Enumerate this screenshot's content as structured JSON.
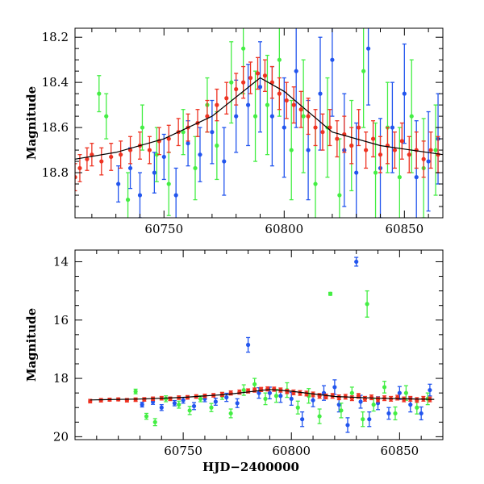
{
  "chart_data": [
    {
      "type": "scatter",
      "title": "",
      "xlabel": "",
      "ylabel": "Magnitude",
      "xlim": [
        60713,
        60866
      ],
      "ylim": [
        19.0,
        18.16
      ],
      "y_inverted": true,
      "x_ticks": [
        60750,
        60800,
        60850
      ],
      "y_ticks": [
        18.2,
        18.4,
        18.6,
        18.8
      ],
      "x_tick_labels": [
        "60750",
        "60800",
        "60850"
      ],
      "y_tick_labels": [
        "18.2",
        "18.4",
        "18.6",
        "18.8"
      ],
      "grid": false,
      "model_curve": {
        "color": "#000000",
        "x": [
          60713,
          60730,
          60750,
          60770,
          60790,
          60800,
          60820,
          60840,
          60866
        ],
        "y": [
          18.74,
          18.71,
          18.65,
          18.55,
          18.38,
          18.44,
          18.62,
          18.68,
          18.72
        ]
      },
      "series": [
        {
          "color": "#2255ee",
          "x": [
            60731,
            60736,
            60740,
            60746,
            60750,
            60755,
            60760,
            60765,
            60770,
            60775,
            60780,
            60785,
            60790,
            60795,
            60800,
            60805,
            60810,
            60815,
            60820,
            60825,
            60830,
            60835,
            60840,
            60845,
            60850,
            60855,
            60860,
            60864
          ],
          "y": [
            18.85,
            18.78,
            18.9,
            18.8,
            18.73,
            18.9,
            18.67,
            18.72,
            18.62,
            18.75,
            18.55,
            18.5,
            18.42,
            18.55,
            18.6,
            18.35,
            18.7,
            18.45,
            18.3,
            18.7,
            18.8,
            18.25,
            18.78,
            18.6,
            18.45,
            18.82,
            18.75,
            18.65
          ],
          "err": [
            0.08,
            0.09,
            0.1,
            0.09,
            0.1,
            0.12,
            0.1,
            0.12,
            0.14,
            0.15,
            0.16,
            0.18,
            0.2,
            0.22,
            0.22,
            0.25,
            0.22,
            0.25,
            0.25,
            0.25,
            0.22,
            0.25,
            0.22,
            0.2,
            0.22,
            0.25,
            0.22,
            0.2
          ]
        },
        {
          "color": "#44ee44",
          "x": [
            60723,
            60726,
            60735,
            60741,
            60747,
            60752,
            60758,
            60763,
            60768,
            60772,
            60778,
            60783,
            60788,
            60793,
            60798,
            60803,
            60808,
            60813,
            60818,
            60823,
            60828,
            60833,
            60838,
            60843,
            60848,
            60853,
            60858,
            60863
          ],
          "y": [
            18.45,
            18.55,
            18.92,
            18.6,
            18.72,
            18.85,
            18.62,
            18.78,
            18.5,
            18.68,
            18.4,
            18.25,
            18.55,
            18.5,
            18.3,
            18.7,
            18.55,
            18.85,
            18.6,
            18.9,
            18.68,
            18.35,
            18.8,
            18.6,
            18.82,
            18.55,
            18.78,
            18.7
          ],
          "err": [
            0.08,
            0.1,
            0.12,
            0.1,
            0.12,
            0.14,
            0.1,
            0.14,
            0.12,
            0.15,
            0.18,
            0.2,
            0.2,
            0.22,
            0.25,
            0.22,
            0.25,
            0.25,
            0.22,
            0.25,
            0.2,
            0.25,
            0.22,
            0.2,
            0.22,
            0.25,
            0.22,
            0.2
          ]
        },
        {
          "color": "#ee3322",
          "x": [
            60713,
            60715,
            60718,
            60720,
            60724,
            60728,
            60732,
            60736,
            60740,
            60744,
            60748,
            60752,
            60756,
            60760,
            60764,
            60768,
            60772,
            60776,
            60780,
            60783,
            60786,
            60789,
            60792,
            60795,
            60798,
            60801,
            60804,
            60807,
            60810,
            60813,
            60816,
            60819,
            60822,
            60825,
            60828,
            60831,
            60834,
            60837,
            60840,
            60843,
            60846,
            60849,
            60852,
            60855,
            60858,
            60861,
            60864
          ],
          "y": [
            18.82,
            18.78,
            18.74,
            18.72,
            18.75,
            18.73,
            18.72,
            18.7,
            18.68,
            18.7,
            18.66,
            18.65,
            18.62,
            18.6,
            18.58,
            18.55,
            18.5,
            18.47,
            18.43,
            18.4,
            18.38,
            18.36,
            18.37,
            18.4,
            18.45,
            18.48,
            18.5,
            18.52,
            18.55,
            18.6,
            18.62,
            18.6,
            18.65,
            18.63,
            18.68,
            18.6,
            18.7,
            18.65,
            18.72,
            18.68,
            18.7,
            18.66,
            18.72,
            18.7,
            18.74,
            18.7,
            18.72
          ],
          "err": [
            0.06,
            0.06,
            0.05,
            0.05,
            0.06,
            0.06,
            0.06,
            0.06,
            0.06,
            0.06,
            0.06,
            0.06,
            0.06,
            0.06,
            0.06,
            0.07,
            0.07,
            0.07,
            0.07,
            0.07,
            0.07,
            0.07,
            0.07,
            0.07,
            0.07,
            0.08,
            0.08,
            0.08,
            0.08,
            0.08,
            0.08,
            0.08,
            0.08,
            0.08,
            0.08,
            0.08,
            0.08,
            0.08,
            0.08,
            0.08,
            0.08,
            0.08,
            0.08,
            0.08,
            0.08,
            0.08,
            0.08
          ]
        }
      ]
    },
    {
      "type": "scatter",
      "title": "",
      "xlabel": "HJD−2400000",
      "ylabel": "Magnitude",
      "xlim": [
        60700,
        60870
      ],
      "ylim": [
        20.1,
        13.6
      ],
      "y_inverted": true,
      "x_ticks": [
        60750,
        60800,
        60850
      ],
      "y_ticks": [
        14,
        16,
        18,
        20
      ],
      "x_tick_labels": [
        "60750",
        "60800",
        "60850"
      ],
      "y_tick_labels": [
        "14",
        "16",
        "18",
        "20"
      ],
      "grid": false,
      "model_curve": {
        "color": "#000000",
        "x": [
          60707,
          60730,
          60750,
          60770,
          60790,
          60800,
          60820,
          60840,
          60866
        ],
        "y": [
          18.74,
          18.71,
          18.65,
          18.55,
          18.38,
          18.44,
          18.62,
          18.68,
          18.72
        ]
      },
      "series": [
        {
          "color": "#2255ee",
          "x": [
            60731,
            60736,
            60740,
            60746,
            60750,
            60755,
            60760,
            60765,
            60770,
            60775,
            60780,
            60785,
            60790,
            60795,
            60800,
            60805,
            60810,
            60815,
            60820,
            60822,
            60826,
            60830,
            60832,
            60836,
            60840,
            60845,
            60850,
            60855,
            60860,
            60864
          ],
          "y": [
            18.9,
            18.8,
            19.0,
            18.85,
            18.75,
            18.95,
            18.7,
            18.8,
            18.65,
            18.85,
            16.85,
            18.5,
            18.5,
            18.6,
            18.7,
            19.4,
            18.75,
            18.5,
            18.3,
            18.9,
            19.6,
            14.0,
            18.8,
            19.4,
            18.85,
            19.2,
            18.5,
            18.9,
            19.2,
            18.4
          ],
          "err": [
            0.08,
            0.09,
            0.1,
            0.09,
            0.1,
            0.12,
            0.1,
            0.12,
            0.14,
            0.15,
            0.25,
            0.18,
            0.2,
            0.22,
            0.22,
            0.25,
            0.22,
            0.25,
            0.25,
            0.25,
            0.25,
            0.15,
            0.22,
            0.25,
            0.22,
            0.2,
            0.22,
            0.25,
            0.22,
            0.2
          ]
        },
        {
          "color": "#44ee44",
          "x": [
            60728,
            60733,
            60737,
            60742,
            60748,
            60753,
            60758,
            60763,
            60768,
            60772,
            60778,
            60783,
            60788,
            60793,
            60798,
            60803,
            60808,
            60813,
            60818,
            60823,
            60828,
            60833,
            60835,
            60838,
            60843,
            60848,
            60853,
            60858,
            60863
          ],
          "y": [
            18.45,
            19.3,
            19.5,
            18.7,
            18.9,
            19.1,
            18.7,
            19.0,
            18.6,
            19.2,
            18.4,
            18.2,
            18.7,
            18.6,
            18.4,
            19.0,
            18.6,
            19.3,
            15.1,
            19.1,
            18.5,
            19.4,
            15.45,
            18.9,
            18.3,
            19.2,
            18.5,
            19.0,
            18.7
          ],
          "err": [
            0.08,
            0.1,
            0.12,
            0.1,
            0.12,
            0.14,
            0.1,
            0.14,
            0.12,
            0.15,
            0.18,
            0.2,
            0.2,
            0.22,
            0.25,
            0.22,
            0.25,
            0.25,
            0.05,
            0.25,
            0.2,
            0.25,
            0.45,
            0.22,
            0.2,
            0.22,
            0.25,
            0.22,
            0.2
          ]
        },
        {
          "color": "#ee3322",
          "x": [
            60707,
            60712,
            60716,
            60720,
            60724,
            60728,
            60732,
            60736,
            60740,
            60744,
            60748,
            60752,
            60756,
            60760,
            60764,
            60768,
            60772,
            60776,
            60780,
            60783,
            60786,
            60789,
            60792,
            60795,
            60798,
            60801,
            60804,
            60807,
            60810,
            60813,
            60816,
            60819,
            60822,
            60825,
            60828,
            60831,
            60834,
            60837,
            60840,
            60843,
            60846,
            60849,
            60852,
            60855,
            60858,
            60861,
            60864
          ],
          "y": [
            18.78,
            18.75,
            18.73,
            18.72,
            18.75,
            18.73,
            18.72,
            18.7,
            18.68,
            18.7,
            18.66,
            18.65,
            18.62,
            18.6,
            18.58,
            18.55,
            18.5,
            18.47,
            18.43,
            18.4,
            18.38,
            18.36,
            18.37,
            18.4,
            18.45,
            18.48,
            18.5,
            18.52,
            18.55,
            18.6,
            18.62,
            18.6,
            18.65,
            18.63,
            18.68,
            18.6,
            18.7,
            18.65,
            18.72,
            18.68,
            18.7,
            18.66,
            18.72,
            18.7,
            18.74,
            18.7,
            18.72
          ],
          "err": [
            0.06,
            0.06,
            0.05,
            0.05,
            0.06,
            0.06,
            0.06,
            0.06,
            0.06,
            0.06,
            0.06,
            0.06,
            0.06,
            0.06,
            0.06,
            0.07,
            0.07,
            0.07,
            0.07,
            0.07,
            0.07,
            0.07,
            0.07,
            0.07,
            0.07,
            0.08,
            0.08,
            0.08,
            0.08,
            0.08,
            0.08,
            0.08,
            0.08,
            0.08,
            0.08,
            0.08,
            0.08,
            0.08,
            0.08,
            0.08,
            0.08,
            0.08,
            0.08,
            0.08,
            0.08,
            0.08,
            0.08
          ]
        }
      ]
    }
  ]
}
